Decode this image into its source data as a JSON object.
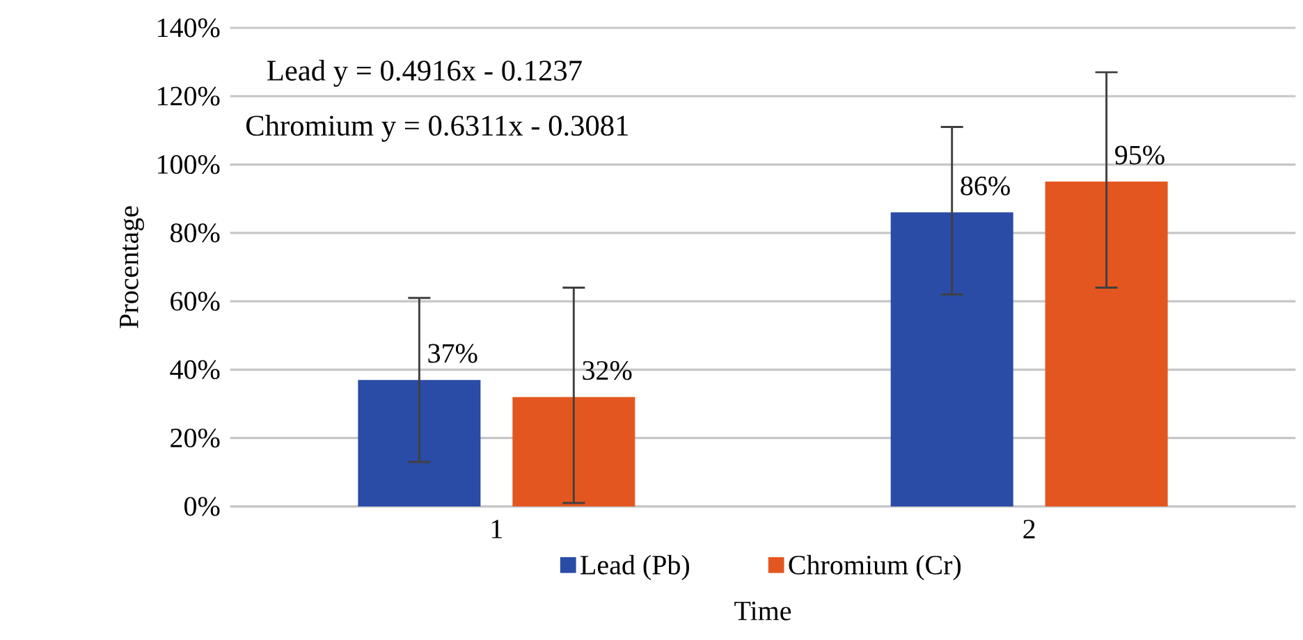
{
  "chart_data": {
    "type": "bar",
    "xlabel": "Time",
    "ylabel": "Procentage",
    "categories": [
      "1",
      "2"
    ],
    "series": [
      {
        "name": "Lead (Pb)",
        "color": "#2a4ba6",
        "values": [
          37,
          86
        ],
        "errors": [
          [
            13,
            61
          ],
          [
            62,
            111
          ]
        ],
        "value_labels": [
          "37%",
          "86%"
        ]
      },
      {
        "name": "Chromium (Cr)",
        "color": "#e4561f",
        "values": [
          32,
          95
        ],
        "errors": [
          [
            1,
            64
          ],
          [
            64,
            127
          ]
        ],
        "value_labels": [
          "32%",
          "95%"
        ]
      }
    ],
    "ylim": [
      0,
      140
    ],
    "yticks": [
      {
        "value": 0,
        "label": "0%"
      },
      {
        "value": 20,
        "label": "20%"
      },
      {
        "value": 40,
        "label": "40%"
      },
      {
        "value": 60,
        "label": "60%"
      },
      {
        "value": 80,
        "label": "80%"
      },
      {
        "value": 100,
        "label": "100%"
      },
      {
        "value": 120,
        "label": "120%"
      },
      {
        "value": 140,
        "label": "140%"
      }
    ],
    "grid": "y",
    "legend": "bottom",
    "annotations": [
      "Lead y = 0.4916x - 0.1237",
      "Chromium y = 0.6311x - 0.3081"
    ]
  }
}
